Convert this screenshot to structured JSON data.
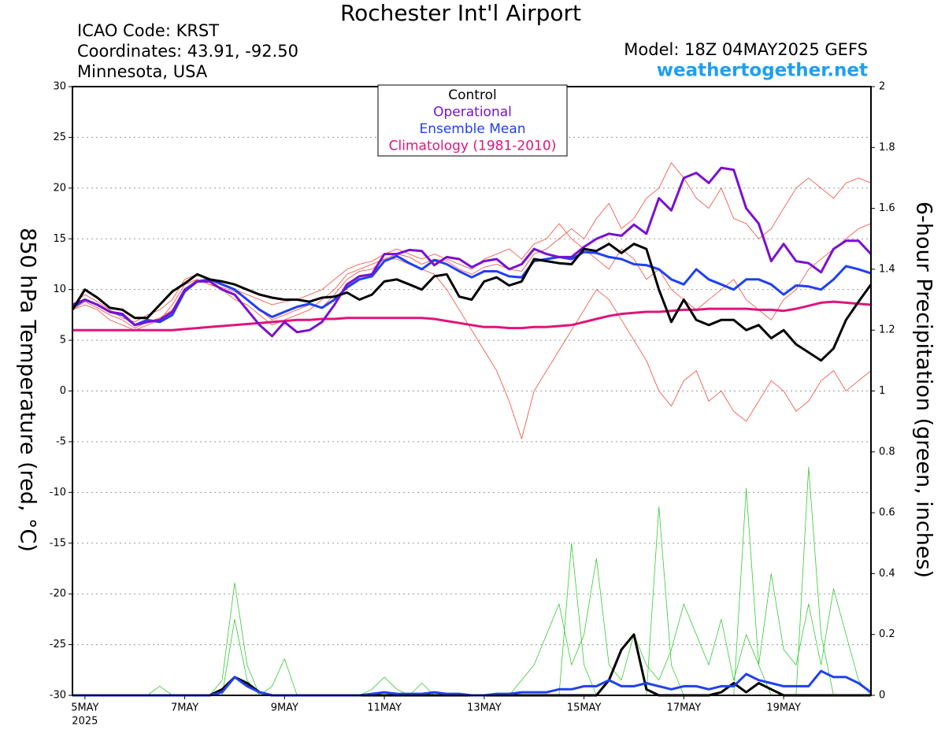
{
  "chart_data": {
    "type": "line",
    "title": "Rochester Int'l Airport",
    "info": [
      "ICAO Code: KRST",
      "Coordinates: 43.91, -92.50",
      "Minnesota, USA"
    ],
    "model": "Model: 18Z 04MAY2025 GEFS",
    "source": "weathertogether.net",
    "ylabel": "850 hPa Temperature (red, °C)",
    "y2label": "6-hour Precipitation (green, inches)",
    "year_label": "2025",
    "categories": [
      null,
      "5MAY",
      null,
      null,
      null,
      null,
      null,
      null,
      null,
      "7MAY",
      null,
      null,
      null,
      null,
      null,
      null,
      null,
      "9MAY",
      null,
      null,
      null,
      null,
      null,
      null,
      null,
      "11MAY",
      null,
      null,
      null,
      null,
      null,
      null,
      null,
      "13MAY",
      null,
      null,
      null,
      null,
      null,
      null,
      null,
      "15MAY",
      null,
      null,
      null,
      null,
      null,
      null,
      null,
      "17MAY",
      null,
      null,
      null,
      null,
      null,
      null,
      null,
      "19MAY",
      null,
      null,
      null,
      null,
      null,
      null,
      null
    ],
    "ylim": [
      -30,
      30
    ],
    "yticks": [
      -30,
      -25,
      -20,
      -15,
      -10,
      -5,
      0,
      5,
      10,
      15,
      20,
      25,
      30
    ],
    "y2lim": [
      0,
      2
    ],
    "y2ticks": [
      0,
      0.2,
      0.4,
      0.6,
      0.8,
      1,
      1.2,
      1.4,
      1.6,
      1.8,
      2
    ],
    "grid": true,
    "series": [
      {
        "color": "#f04a3a",
        "width": 0.8,
        "values": [
          8,
          8.8,
          8.2,
          7.5,
          7,
          6.2,
          6.8,
          7.2,
          8,
          10,
          11,
          10.5,
          10.2,
          9.8,
          9,
          8,
          7,
          7.5,
          8,
          8.5,
          8.2,
          9.5,
          11,
          11.8,
          12,
          13,
          13.5,
          13.2,
          12.5,
          13,
          12.8,
          12,
          11.5,
          12.2,
          12.5,
          12,
          11.8,
          13.5,
          14,
          15,
          16,
          15,
          17,
          18.5,
          16,
          17,
          19,
          20,
          22.5,
          21,
          19,
          18,
          20,
          17,
          16.5,
          15,
          16,
          18,
          20,
          21,
          20,
          19,
          20.5,
          21,
          20.5
        ]
      },
      {
        "color": "#f04a3a",
        "width": 0.8,
        "values": [
          8,
          8.5,
          8,
          7,
          6.5,
          6,
          6.5,
          7,
          8.5,
          10.5,
          11,
          10.5,
          10,
          9,
          8.5,
          7.5,
          6.5,
          7,
          7.5,
          8,
          9,
          10,
          11.5,
          12,
          12.5,
          13,
          13,
          12.5,
          12,
          11.5,
          10,
          8,
          6,
          4,
          2,
          -1,
          -4.7,
          0,
          2,
          4,
          6,
          8,
          10,
          9,
          7,
          5,
          3,
          0,
          -1.5,
          1,
          2,
          -1,
          0,
          -2,
          -3,
          -1,
          1,
          0,
          -2,
          -1,
          1,
          2,
          0,
          1,
          2
        ]
      },
      {
        "color": "#f04a3a",
        "width": 0.8,
        "values": [
          8.5,
          9.5,
          8.8,
          8,
          7.2,
          6.8,
          7.5,
          8,
          9,
          11,
          11.5,
          11,
          10.5,
          10,
          9.5,
          9,
          8.5,
          8.8,
          9,
          9.5,
          10,
          11,
          12,
          12.5,
          12.8,
          13.5,
          14,
          13.5,
          13,
          13.5,
          13,
          12.5,
          12,
          13,
          13.5,
          14,
          13,
          14.5,
          15,
          16.5,
          15,
          14,
          13,
          12,
          14,
          13,
          11,
          12,
          10,
          9,
          8,
          9,
          10,
          11,
          9,
          8,
          7,
          9,
          10,
          12,
          13,
          14,
          15,
          16,
          16.5
        ]
      },
      {
        "color": "#33cc33",
        "width": 0.8,
        "axis": "y2",
        "values": [
          0,
          0,
          0,
          0,
          0,
          0,
          0,
          0,
          0,
          0,
          0,
          0,
          0.05,
          0.37,
          0.1,
          0,
          0,
          0,
          0,
          0,
          0,
          0,
          0,
          0,
          0,
          0,
          0,
          0,
          0,
          0,
          0,
          0,
          0,
          0,
          0,
          0,
          0,
          0,
          0,
          0,
          0.5,
          0.1,
          0,
          0,
          0,
          0,
          0,
          0.62,
          0.1,
          0,
          0,
          0,
          0,
          0,
          0.68,
          0.1,
          0,
          0,
          0,
          0.75,
          0.2,
          0,
          0,
          0,
          0
        ]
      },
      {
        "color": "#33cc33",
        "width": 0.8,
        "axis": "y2",
        "values": [
          0,
          0,
          0,
          0,
          0,
          0,
          0,
          0.03,
          0,
          0,
          0,
          0,
          0,
          0.25,
          0.05,
          0,
          0.03,
          0.12,
          0,
          0,
          0,
          0,
          0,
          0,
          0.02,
          0.06,
          0.02,
          0,
          0.04,
          0,
          0,
          0,
          0,
          0,
          0,
          0,
          0.05,
          0.1,
          0.2,
          0.3,
          0.1,
          0.2,
          0.45,
          0.1,
          0.05,
          0.2,
          0.1,
          0.05,
          0.15,
          0.3,
          0.2,
          0.1,
          0.25,
          0.05,
          0.2,
          0.1,
          0.4,
          0.15,
          0.1,
          0.3,
          0.1,
          0.35,
          0.2,
          0.05,
          0
        ]
      },
      {
        "color": "#000000",
        "width": 3,
        "axis": "y2",
        "values": [
          0,
          0,
          0,
          0,
          0,
          0,
          0,
          0,
          0,
          0,
          0,
          0,
          0.02,
          0.06,
          0.04,
          0.01,
          0,
          0,
          0,
          0,
          0,
          0,
          0,
          0,
          0,
          0,
          0,
          0,
          0,
          0,
          0,
          0,
          0,
          0,
          0,
          0,
          0,
          0,
          0,
          0,
          0,
          0,
          0,
          0.05,
          0.15,
          0.2,
          0.02,
          0,
          0,
          0,
          0,
          0,
          0.01,
          0.04,
          0.01,
          0.04,
          0.02,
          0,
          0,
          0,
          0,
          0,
          0,
          0,
          0
        ]
      },
      {
        "color": "#2040f0",
        "width": 3,
        "axis": "y2",
        "values": [
          0,
          0,
          0,
          0,
          0,
          0,
          0,
          0,
          0,
          0,
          0,
          0,
          0.01,
          0.06,
          0.03,
          0.01,
          0,
          0,
          0,
          0,
          0,
          0,
          0,
          0,
          0.005,
          0.01,
          0.005,
          0.005,
          0.005,
          0.01,
          0.005,
          0.005,
          0,
          0,
          0.005,
          0.005,
          0.01,
          0.01,
          0.01,
          0.02,
          0.02,
          0.03,
          0.03,
          0.05,
          0.03,
          0.03,
          0.04,
          0.03,
          0.02,
          0.03,
          0.03,
          0.02,
          0.03,
          0.03,
          0.07,
          0.05,
          0.04,
          0.03,
          0.03,
          0.03,
          0.08,
          0.06,
          0.06,
          0.04,
          0.01
        ]
      },
      {
        "name": "Climatology (1981-2010)",
        "color": "#e0147a",
        "width": 3,
        "values": [
          6,
          6,
          6,
          6,
          6,
          6,
          6,
          6,
          6,
          6.1,
          6.2,
          6.3,
          6.4,
          6.5,
          6.6,
          6.7,
          6.8,
          6.9,
          7,
          7,
          7.1,
          7.1,
          7.2,
          7.2,
          7.2,
          7.2,
          7.2,
          7.2,
          7.2,
          7.1,
          6.9,
          6.7,
          6.5,
          6.3,
          6.3,
          6.2,
          6.2,
          6.3,
          6.3,
          6.4,
          6.5,
          6.8,
          7.1,
          7.4,
          7.6,
          7.7,
          7.8,
          7.8,
          7.9,
          8,
          8,
          8.1,
          8.1,
          8.1,
          8.1,
          8,
          8,
          7.9,
          8.1,
          8.4,
          8.7,
          8.8,
          8.7,
          8.6,
          8.5
        ]
      },
      {
        "name": "Ensemble Mean",
        "color": "#2040f0",
        "width": 3,
        "values": [
          8.2,
          9,
          8.5,
          7.8,
          7.5,
          6.5,
          7,
          6.8,
          7.5,
          9.8,
          10.8,
          11,
          10.5,
          10,
          9,
          8,
          7.3,
          7.8,
          8.3,
          8.6,
          8.2,
          9,
          10.2,
          11,
          11.3,
          12.8,
          13.3,
          12.6,
          12,
          12.9,
          12.5,
          11.8,
          11.2,
          11.8,
          11.8,
          11.3,
          11.2,
          12.8,
          13,
          13.2,
          13,
          13.7,
          13.6,
          13.2,
          13,
          12.5,
          12.4,
          12,
          11,
          10.5,
          12,
          11,
          10.5,
          10,
          11,
          11,
          10.5,
          9.5,
          10.4,
          10.3,
          10,
          11,
          12.3,
          12,
          11.6
        ]
      },
      {
        "name": "Operational",
        "color": "#7a10d0",
        "width": 3,
        "values": [
          8.5,
          9,
          8.5,
          7.8,
          7.6,
          6.5,
          6.8,
          7,
          7.8,
          10,
          10.8,
          10.8,
          10,
          9.5,
          8,
          6.5,
          5.4,
          6.8,
          5.8,
          6,
          6.8,
          8.5,
          10.5,
          11.3,
          11.5,
          13.5,
          13.5,
          13.9,
          13.8,
          12.4,
          13.2,
          13,
          12.2,
          12.8,
          13,
          12,
          12.5,
          14,
          13.5,
          13.2,
          13.2,
          14.2,
          15,
          15.5,
          15.3,
          16.4,
          15.5,
          19,
          17.8,
          21,
          21.5,
          20.5,
          22,
          21.8,
          18,
          16.5,
          12.8,
          14.5,
          12.8,
          12.6,
          11.7,
          14,
          14.8,
          14.8,
          13.5
        ]
      },
      {
        "name": "Control",
        "color": "#000000",
        "width": 3,
        "values": [
          8,
          10,
          9.2,
          8.2,
          8,
          7.2,
          7.2,
          8.5,
          9.8,
          10.6,
          11.5,
          11,
          10.8,
          10.5,
          10,
          9.5,
          9.2,
          9,
          9,
          8.8,
          9.2,
          9.3,
          9.7,
          9,
          9.5,
          10.8,
          11,
          10.5,
          10,
          11.3,
          11.5,
          9.3,
          9,
          10.8,
          11.2,
          10.4,
          10.8,
          13,
          12.8,
          12.6,
          12.5,
          14,
          13.8,
          14.5,
          13.6,
          14.5,
          14,
          10,
          6.8,
          9,
          7,
          6.5,
          7,
          7,
          6,
          6.5,
          5.2,
          6,
          4.6,
          3.8,
          3,
          4.2,
          7,
          8.8,
          10.5
        ]
      }
    ]
  }
}
